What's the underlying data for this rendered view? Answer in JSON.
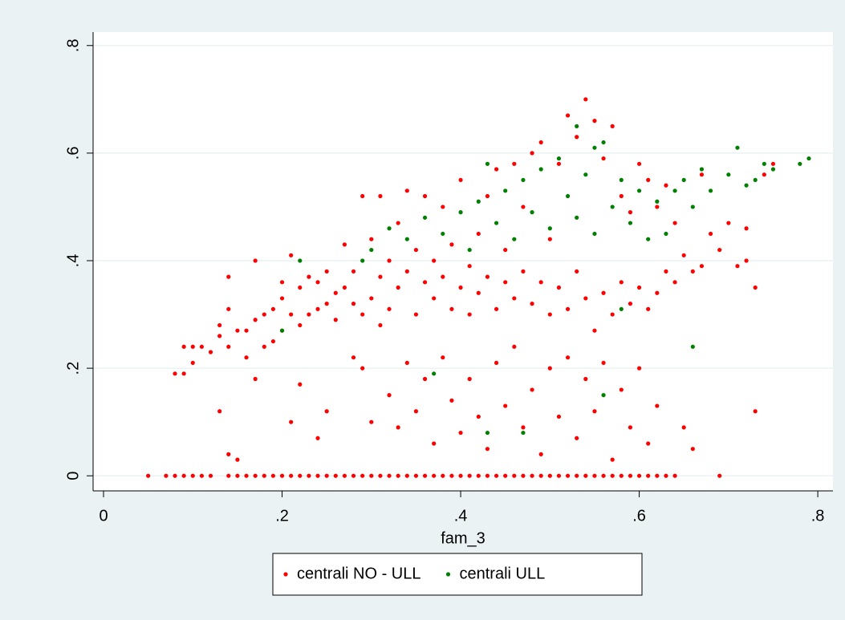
{
  "chart_data": {
    "type": "scatter",
    "xlabel": "fam_3",
    "xlim": [
      -0.0117,
      0.817
    ],
    "ylim": [
      -0.028,
      0.825
    ],
    "xticks": [
      0,
      {
        "value": 0.2,
        "label": ".2"
      },
      {
        "value": 0.4,
        "label": ".4"
      },
      {
        "value": 0.6,
        "label": ".6"
      },
      {
        "value": 0.8,
        "label": ".8"
      }
    ],
    "yticks": [
      0,
      {
        "value": 0.2,
        "label": ".2"
      },
      {
        "value": 0.4,
        "label": ".4"
      },
      {
        "value": 0.6,
        "label": ".6"
      },
      {
        "value": 0.8,
        "label": ".8"
      }
    ],
    "grid": true,
    "legend": "bottom",
    "series": [
      {
        "name": "centrali NO - ULL",
        "color": "#ff0000",
        "x": [
          0.05,
          0.07,
          0.08,
          0.09,
          0.1,
          0.11,
          0.12,
          0.14,
          0.15,
          0.16,
          0.17,
          0.18,
          0.19,
          0.2,
          0.21,
          0.22,
          0.23,
          0.24,
          0.25,
          0.26,
          0.27,
          0.28,
          0.29,
          0.3,
          0.31,
          0.32,
          0.33,
          0.34,
          0.35,
          0.36,
          0.37,
          0.38,
          0.39,
          0.4,
          0.41,
          0.42,
          0.43,
          0.44,
          0.45,
          0.46,
          0.47,
          0.48,
          0.49,
          0.5,
          0.51,
          0.52,
          0.53,
          0.54,
          0.55,
          0.56,
          0.57,
          0.58,
          0.59,
          0.6,
          0.61,
          0.62,
          0.63,
          0.64,
          0.69,
          0.08,
          0.09,
          0.09,
          0.1,
          0.1,
          0.11,
          0.12,
          0.13,
          0.13,
          0.13,
          0.14,
          0.14,
          0.14,
          0.14,
          0.15,
          0.15,
          0.16,
          0.16,
          0.17,
          0.17,
          0.17,
          0.18,
          0.18,
          0.19,
          0.19,
          0.2,
          0.2,
          0.2,
          0.21,
          0.21,
          0.21,
          0.22,
          0.22,
          0.22,
          0.23,
          0.23,
          0.24,
          0.24,
          0.24,
          0.25,
          0.25,
          0.25,
          0.26,
          0.26,
          0.27,
          0.27,
          0.28,
          0.28,
          0.28,
          0.29,
          0.29,
          0.29,
          0.3,
          0.3,
          0.3,
          0.31,
          0.31,
          0.31,
          0.32,
          0.32,
          0.32,
          0.33,
          0.33,
          0.33,
          0.34,
          0.34,
          0.34,
          0.35,
          0.35,
          0.35,
          0.36,
          0.36,
          0.36,
          0.37,
          0.37,
          0.37,
          0.38,
          0.38,
          0.38,
          0.39,
          0.39,
          0.39,
          0.4,
          0.4,
          0.4,
          0.41,
          0.41,
          0.41,
          0.42,
          0.42,
          0.42,
          0.43,
          0.43,
          0.43,
          0.44,
          0.44,
          0.44,
          0.45,
          0.45,
          0.45,
          0.46,
          0.46,
          0.46,
          0.47,
          0.47,
          0.47,
          0.48,
          0.48,
          0.48,
          0.49,
          0.49,
          0.49,
          0.5,
          0.5,
          0.5,
          0.51,
          0.51,
          0.51,
          0.52,
          0.52,
          0.52,
          0.53,
          0.53,
          0.53,
          0.54,
          0.54,
          0.54,
          0.55,
          0.55,
          0.55,
          0.56,
          0.56,
          0.56,
          0.57,
          0.57,
          0.57,
          0.58,
          0.58,
          0.58,
          0.59,
          0.59,
          0.59,
          0.6,
          0.6,
          0.6,
          0.61,
          0.61,
          0.61,
          0.62,
          0.62,
          0.62,
          0.63,
          0.63,
          0.64,
          0.64,
          0.65,
          0.65,
          0.66,
          0.66,
          0.67,
          0.67,
          0.68,
          0.69,
          0.7,
          0.71,
          0.72,
          0.72,
          0.73,
          0.73,
          0.74,
          0.75
        ],
        "values": [
          0,
          0,
          0,
          0,
          0,
          0,
          0,
          0,
          0,
          0,
          0,
          0,
          0,
          0,
          0,
          0,
          0,
          0,
          0,
          0,
          0,
          0,
          0,
          0,
          0,
          0,
          0,
          0,
          0,
          0,
          0,
          0,
          0,
          0,
          0,
          0,
          0,
          0,
          0,
          0,
          0,
          0,
          0,
          0,
          0,
          0,
          0,
          0,
          0,
          0,
          0,
          0,
          0,
          0,
          0,
          0,
          0,
          0,
          0,
          0.19,
          0.19,
          0.24,
          0.21,
          0.24,
          0.24,
          0.23,
          0.12,
          0.26,
          0.28,
          0.04,
          0.24,
          0.31,
          0.37,
          0.03,
          0.27,
          0.22,
          0.27,
          0.18,
          0.29,
          0.4,
          0.24,
          0.3,
          0.25,
          0.31,
          0.27,
          0.33,
          0.36,
          0.1,
          0.3,
          0.41,
          0.17,
          0.28,
          0.35,
          0.3,
          0.37,
          0.07,
          0.31,
          0.36,
          0.12,
          0.32,
          0.38,
          0.29,
          0.34,
          0.35,
          0.43,
          0.22,
          0.32,
          0.38,
          0.2,
          0.3,
          0.52,
          0.1,
          0.33,
          0.44,
          0.28,
          0.37,
          0.52,
          0.15,
          0.31,
          0.4,
          0.09,
          0.35,
          0.47,
          0.21,
          0.38,
          0.53,
          0.12,
          0.3,
          0.42,
          0.18,
          0.36,
          0.52,
          0.06,
          0.33,
          0.4,
          0.22,
          0.37,
          0.5,
          0.14,
          0.31,
          0.43,
          0.08,
          0.35,
          0.55,
          0.18,
          0.3,
          0.39,
          0.11,
          0.34,
          0.45,
          0.05,
          0.37,
          0.52,
          0.21,
          0.31,
          0.57,
          0.13,
          0.36,
          0.42,
          0.24,
          0.33,
          0.58,
          0.09,
          0.38,
          0.5,
          0.16,
          0.32,
          0.6,
          0.04,
          0.36,
          0.62,
          0.2,
          0.3,
          0.44,
          0.11,
          0.35,
          0.58,
          0.22,
          0.31,
          0.67,
          0.07,
          0.38,
          0.63,
          0.18,
          0.33,
          0.7,
          0.12,
          0.27,
          0.66,
          0.21,
          0.34,
          0.59,
          0.03,
          0.3,
          0.65,
          0.16,
          0.36,
          0.52,
          0.09,
          0.32,
          0.49,
          0.2,
          0.35,
          0.58,
          0.06,
          0.31,
          0.55,
          0.13,
          0.34,
          0.5,
          0.38,
          0.54,
          0.36,
          0.47,
          0.09,
          0.41,
          0.05,
          0.38,
          0.39,
          0.56,
          0.45,
          0.42,
          0.47,
          0.39,
          0.4,
          0.46,
          0.12,
          0.35,
          0.56,
          0.58
        ]
      },
      {
        "name": "centrali ULL",
        "color": "#008000",
        "x": [
          0.2,
          0.22,
          0.29,
          0.3,
          0.32,
          0.34,
          0.36,
          0.37,
          0.38,
          0.4,
          0.41,
          0.42,
          0.43,
          0.43,
          0.44,
          0.45,
          0.46,
          0.47,
          0.47,
          0.48,
          0.49,
          0.5,
          0.51,
          0.52,
          0.53,
          0.53,
          0.54,
          0.55,
          0.55,
          0.56,
          0.56,
          0.57,
          0.58,
          0.58,
          0.59,
          0.6,
          0.61,
          0.62,
          0.63,
          0.64,
          0.65,
          0.66,
          0.66,
          0.67,
          0.68,
          0.7,
          0.71,
          0.72,
          0.73,
          0.74,
          0.75,
          0.78,
          0.79
        ],
        "values": [
          0.27,
          0.4,
          0.4,
          0.42,
          0.46,
          0.44,
          0.48,
          0.19,
          0.45,
          0.49,
          0.42,
          0.51,
          0.58,
          0.08,
          0.47,
          0.53,
          0.44,
          0.55,
          0.08,
          0.49,
          0.57,
          0.46,
          0.59,
          0.52,
          0.65,
          0.48,
          0.56,
          0.61,
          0.45,
          0.62,
          0.15,
          0.5,
          0.31,
          0.55,
          0.47,
          0.53,
          0.44,
          0.51,
          0.45,
          0.53,
          0.55,
          0.24,
          0.5,
          0.57,
          0.53,
          0.56,
          0.61,
          0.54,
          0.55,
          0.58,
          0.57,
          0.58,
          0.59
        ]
      }
    ]
  }
}
